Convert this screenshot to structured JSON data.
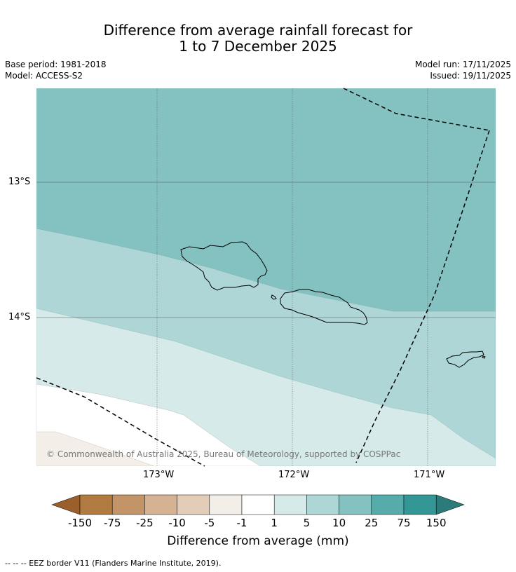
{
  "title": {
    "line1": "Difference from average rainfall forecast for",
    "line2": "1 to 7 December 2025"
  },
  "meta": {
    "base_period": "Base period: 1981-2018",
    "model": "Model: ACCESS-S2",
    "model_run": "Model run: 17/11/2025",
    "issued": "Issued: 19/11/2025"
  },
  "map": {
    "lat_labels": [
      "13°S",
      "14°S"
    ],
    "lon_labels": [
      "173°W",
      "172°W",
      "171°W"
    ],
    "copyright": "© Commonwealth of Australia 2025, Bureau of Meteorology, supported by COSPPac",
    "regions": [
      {
        "name": "10 to 25 mm",
        "color": "#84c2c1"
      },
      {
        "name": "5 to 10 mm",
        "color": "#aed6d6"
      },
      {
        "name": "1 to 5 mm",
        "color": "#d6eae9"
      },
      {
        "name": "-1 to 1 mm",
        "color": "#ffffff"
      },
      {
        "name": "-5 to -1 mm",
        "color": "#f3eee8"
      }
    ]
  },
  "colorbar": {
    "title": "Difference from average (mm)",
    "tick_labels": [
      "-150",
      "-75",
      "-25",
      "-10",
      "-5",
      "-1",
      "1",
      "5",
      "10",
      "25",
      "75",
      "150"
    ],
    "colors": [
      "#9a5f2a",
      "#b07a40",
      "#c29467",
      "#d4b292",
      "#e3cdb9",
      "#f3eee8",
      "#ffffff",
      "#d6eae9",
      "#aed6d6",
      "#84c2c1",
      "#55acab",
      "#339795",
      "#2a7b7a"
    ]
  },
  "footnote": "--  --  -- EEZ border V11 (Flanders Marine Institute, 2019)."
}
